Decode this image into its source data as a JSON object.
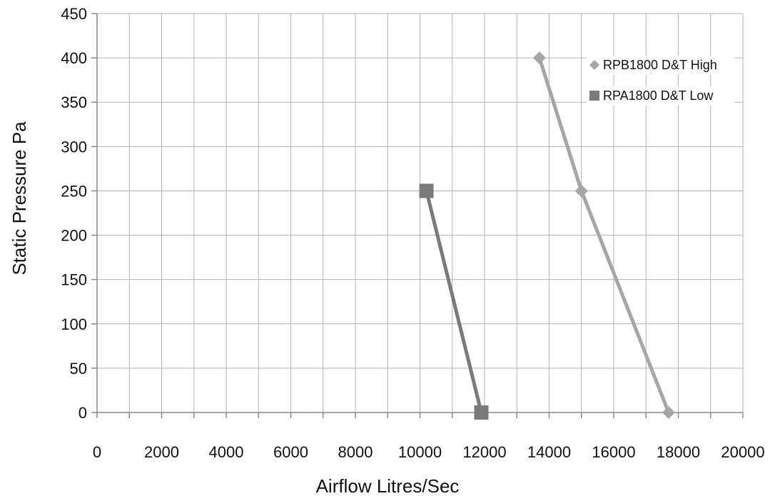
{
  "chart_data": {
    "type": "line",
    "title": "",
    "xlabel": "Airflow Litres/Sec",
    "ylabel": "Static Pressure Pa",
    "xlim": [
      0,
      20000
    ],
    "ylim": [
      0,
      450
    ],
    "xticks": [
      0,
      2000,
      4000,
      6000,
      8000,
      10000,
      12000,
      14000,
      16000,
      18000,
      20000
    ],
    "yticks": [
      0,
      50,
      100,
      150,
      200,
      250,
      300,
      350,
      400,
      450
    ],
    "minor_x_grid_step": 1000,
    "grid": true,
    "legend_position": "top-right",
    "series": [
      {
        "name": "RPB1800 D&T  High",
        "marker": "diamond",
        "color": "#a6a6a6",
        "points": [
          {
            "x": 13700,
            "y": 400
          },
          {
            "x": 15000,
            "y": 250
          },
          {
            "x": 17700,
            "y": 0
          }
        ]
      },
      {
        "name": "RPA1800 D&T Low",
        "marker": "square",
        "color": "#7a7a7a",
        "points": [
          {
            "x": 10200,
            "y": 250
          },
          {
            "x": 11900,
            "y": 0
          }
        ]
      }
    ]
  }
}
